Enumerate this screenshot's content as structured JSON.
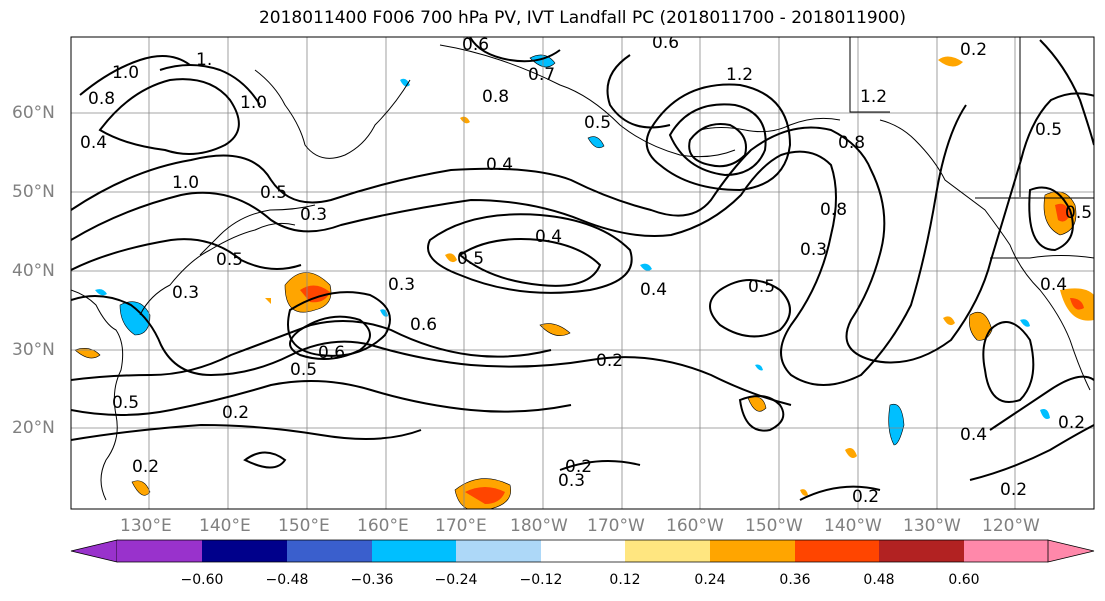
{
  "title": "2018011400 F006 700 hPa PV, IVT Landfall PC (2018011700 - 2018011900)",
  "lat_labels": [
    "60°N",
    "50°N",
    "40°N",
    "30°N",
    "20°N"
  ],
  "lon_labels": [
    "130°E",
    "140°E",
    "150°E",
    "160°E",
    "170°E",
    "180°W",
    "170°W",
    "160°W",
    "150°W",
    "140°W",
    "130°W",
    "120°W"
  ],
  "contour_labels": [
    "1.0",
    "1.",
    "0.8",
    "0.4",
    "1.0",
    "1.0",
    "0.5",
    "0.3",
    "0.5",
    "0.3",
    "0.6",
    "0.5",
    "0.6",
    "0.2",
    "0.5",
    "0.2",
    "0.2",
    "0.3",
    "0.4",
    "0.5",
    "0.6",
    "0.7",
    "0.6",
    "0.8",
    "0.5",
    "0.4",
    "1.2",
    "1.2",
    "0.2",
    "0.8",
    "0.8",
    "0.3",
    "0.5",
    "0.2",
    "0.4",
    "0.2",
    "0.2",
    "0.2",
    "0.4",
    "0.5",
    "0.5",
    "0.3",
    "0.4"
  ],
  "colorbar": {
    "ticks": [
      "−0.60",
      "−0.48",
      "−0.36",
      "−0.24",
      "−0.12",
      "0.12",
      "0.24",
      "0.36",
      "0.48",
      "0.60"
    ],
    "colors": [
      "#9932cc",
      "#00008b",
      "#3a5fcd",
      "#00bfff",
      "#add8f8",
      "#ffffff",
      "#ffe680",
      "#ffa500",
      "#ff4500",
      "#b22222",
      "#ff88aa"
    ]
  }
}
